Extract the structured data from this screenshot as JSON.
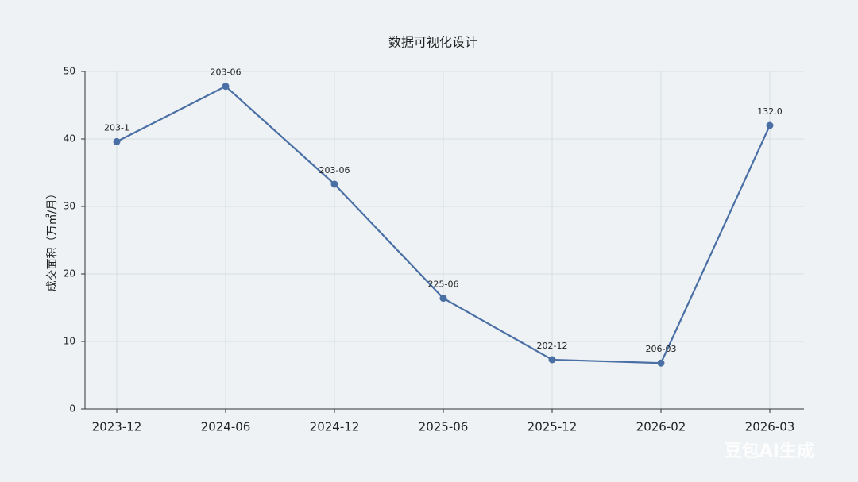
{
  "chart_data": {
    "type": "line",
    "title": "数据可视化设计",
    "y_label": "成交面积（万㎡/月）",
    "categories": [
      "2023-12",
      "2024-06",
      "2024-12",
      "2025-06",
      "2025-12",
      "2026-02",
      "2026-03"
    ],
    "series": [
      {
        "name": "成交面积",
        "color": "#4a6fa5",
        "values": [
          39.6,
          47.8,
          33.3,
          16.4,
          7.3,
          6.8,
          42.0
        ]
      }
    ],
    "annotations": [
      "203-1",
      "203-06",
      "203-06",
      "225-06",
      "202-12",
      "206-03",
      "132.0"
    ],
    "ylim": [
      0,
      50
    ],
    "yticks": [
      0,
      10,
      20,
      30,
      40,
      50
    ],
    "grid": true
  },
  "watermark": "豆包AI生成"
}
